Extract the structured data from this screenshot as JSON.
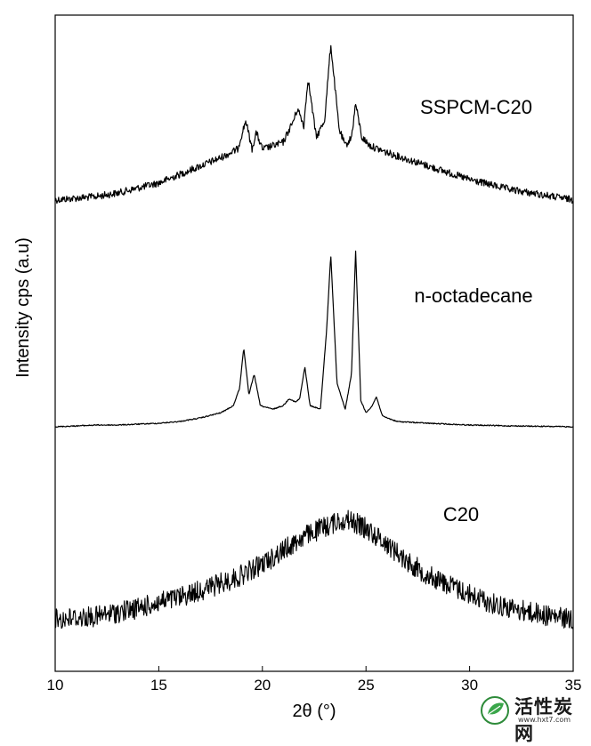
{
  "chart_data": {
    "type": "line",
    "xlabel": "2θ (°)",
    "ylabel": "Intensity cps (a.u)",
    "xlim": [
      10,
      35
    ],
    "x_ticks": [
      10,
      15,
      20,
      25,
      30,
      35
    ],
    "x_tick_labels": [
      "10",
      "15",
      "20",
      "25",
      "30",
      "35"
    ],
    "y_ticks_shown": false,
    "series": [
      {
        "name": "SSPCM-C20",
        "style": "noisy",
        "x": [
          10,
          11,
          12,
          13,
          14,
          15,
          16,
          17,
          18,
          18.8,
          19.2,
          19.5,
          19.7,
          20,
          20.5,
          21,
          21.5,
          21.7,
          22,
          22.2,
          22.6,
          23,
          23.3,
          23.7,
          24,
          24.3,
          24.5,
          24.8,
          25.2,
          26,
          27,
          28,
          29,
          30,
          31,
          32,
          33,
          34,
          35
        ],
        "y": [
          0.08,
          0.09,
          0.1,
          0.12,
          0.15,
          0.18,
          0.23,
          0.28,
          0.33,
          0.38,
          0.55,
          0.38,
          0.48,
          0.38,
          0.4,
          0.42,
          0.55,
          0.62,
          0.52,
          0.8,
          0.45,
          0.55,
          1.0,
          0.5,
          0.4,
          0.45,
          0.65,
          0.45,
          0.4,
          0.36,
          0.32,
          0.28,
          0.24,
          0.2,
          0.17,
          0.14,
          0.12,
          0.1,
          0.08
        ]
      },
      {
        "name": "n-octadecane",
        "style": "clean",
        "x": [
          10,
          11,
          12,
          13,
          14,
          15,
          16,
          17,
          18,
          18.6,
          18.9,
          19.1,
          19.35,
          19.6,
          19.9,
          20.5,
          21,
          21.3,
          21.6,
          21.8,
          22.05,
          22.3,
          22.8,
          23.1,
          23.3,
          23.6,
          24,
          24.3,
          24.5,
          24.75,
          25,
          25.3,
          25.5,
          25.8,
          26.5,
          28,
          30,
          32,
          35
        ],
        "y": [
          0.0,
          0.005,
          0.01,
          0.01,
          0.015,
          0.02,
          0.03,
          0.05,
          0.08,
          0.12,
          0.22,
          0.45,
          0.18,
          0.3,
          0.12,
          0.1,
          0.12,
          0.16,
          0.14,
          0.16,
          0.34,
          0.12,
          0.1,
          0.55,
          0.98,
          0.25,
          0.1,
          0.3,
          1.0,
          0.15,
          0.08,
          0.12,
          0.17,
          0.06,
          0.03,
          0.02,
          0.01,
          0.005,
          0.0
        ]
      },
      {
        "name": "C20",
        "style": "very-noisy",
        "x": [
          10,
          12,
          14,
          16,
          18,
          19,
          20,
          21,
          22,
          23,
          23.8,
          24.2,
          25,
          26,
          27,
          28,
          29,
          30,
          31,
          32,
          33,
          34,
          35
        ],
        "y": [
          0.1,
          0.12,
          0.18,
          0.26,
          0.36,
          0.42,
          0.5,
          0.6,
          0.7,
          0.77,
          0.82,
          0.82,
          0.76,
          0.65,
          0.52,
          0.42,
          0.35,
          0.28,
          0.22,
          0.18,
          0.15,
          0.12,
          0.1
        ]
      }
    ],
    "legend": "labels placed beside each trace"
  },
  "watermark": {
    "text": "活性炭网",
    "url": "www.hxt7.com"
  }
}
